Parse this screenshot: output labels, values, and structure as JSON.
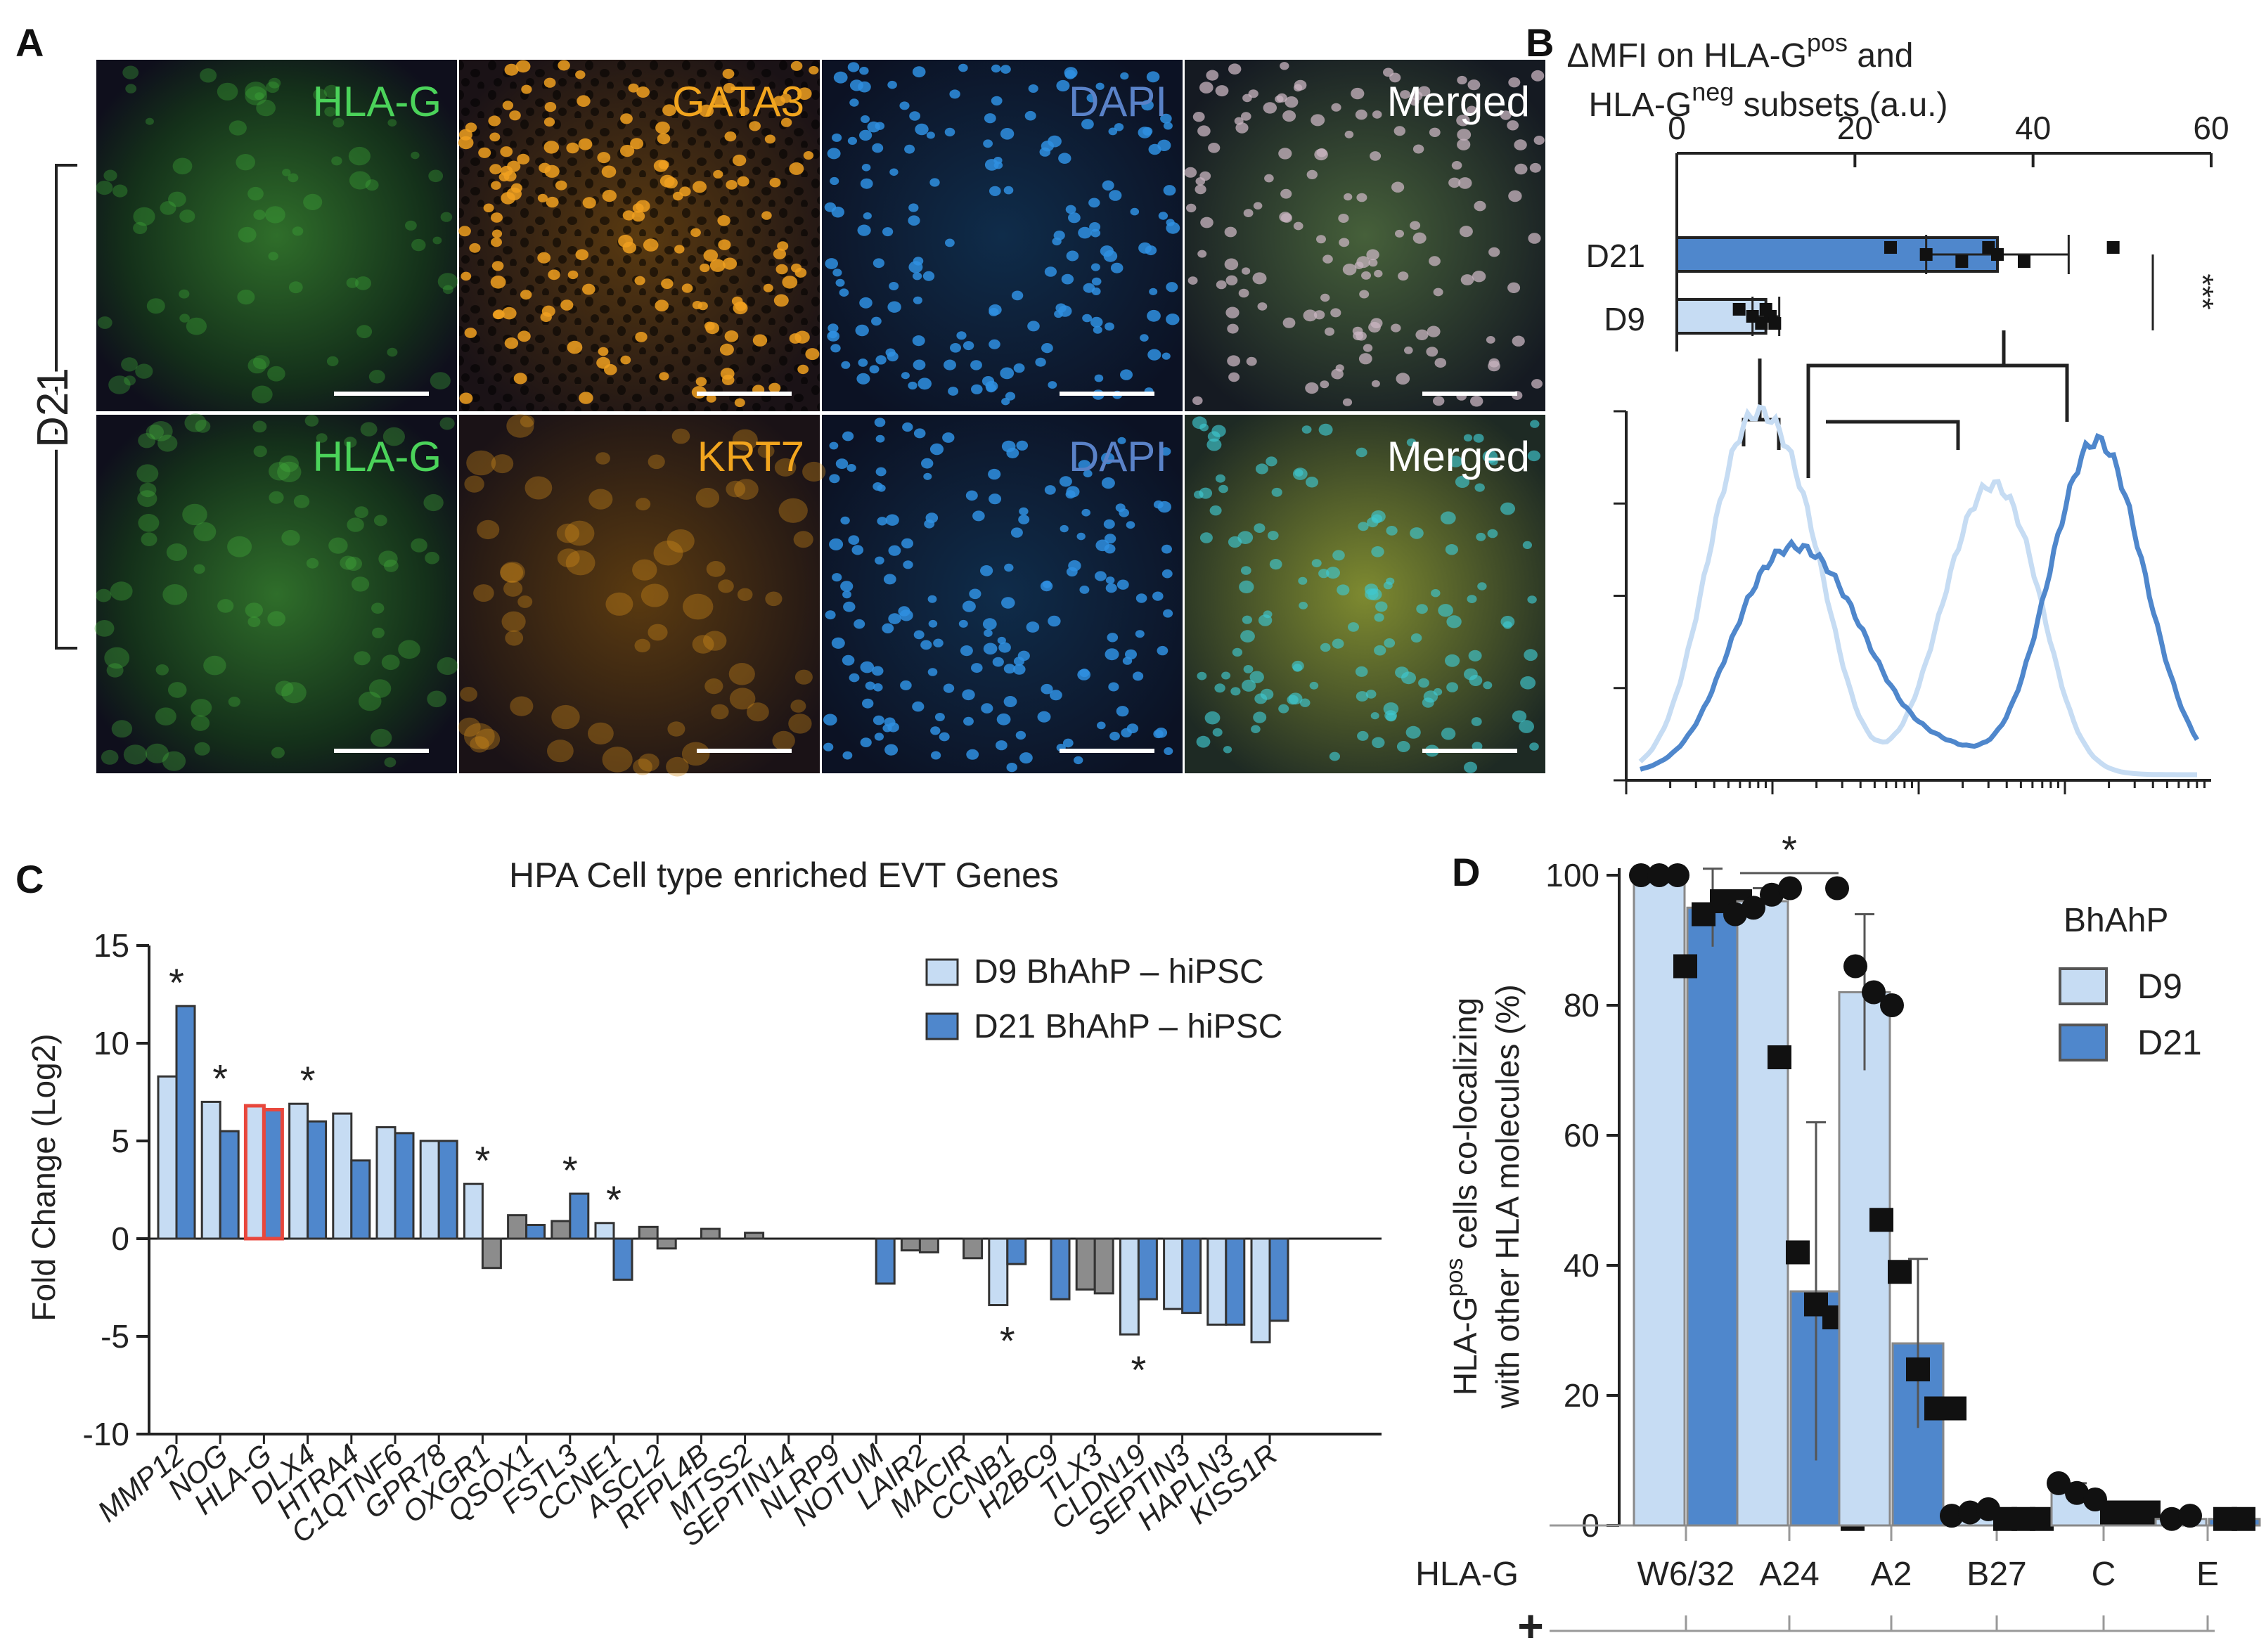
{
  "panel_letters": {
    "A": "A",
    "B": "B",
    "C": "C",
    "D": "D"
  },
  "colors": {
    "d9": "#c6dcf3",
    "d21": "#4f87cc",
    "gray": "#8c8c8c",
    "red_outline": "#e8473c",
    "green_label": "#4bd35a",
    "orange_label": "#f2a51e",
    "blue_label": "#5a82c8",
    "white_label": "#ffffff"
  },
  "panel_a": {
    "row_label": "D21",
    "row1": [
      "HLA-G",
      "GATA3",
      "DAPI",
      "Merged"
    ],
    "row2": [
      "HLA-G",
      "KRT7",
      "DAPI",
      "Merged"
    ]
  },
  "panel_b": {
    "title_line1": "ΔMFI on HLA-G",
    "title_sup1": "pos",
    "title_after1": " and",
    "title_line2": "HLA-G",
    "title_sup2": "neg",
    "title_after2": " subsets (a.u.)",
    "axis_ticks": [
      "0",
      "20",
      "40",
      "60"
    ],
    "rows": [
      "D21",
      "D9"
    ],
    "significance": "***",
    "chart_data": {
      "type": "bar",
      "orientation": "horizontal",
      "categories": [
        "D21",
        "D9"
      ],
      "values": [
        36,
        10
      ],
      "errors": [
        8,
        1.5
      ],
      "points": [
        [
          24,
          28,
          32,
          35,
          36,
          39,
          49
        ],
        [
          7,
          8.5,
          9.5,
          10,
          10.5,
          11
        ]
      ],
      "xlim": [
        0,
        60
      ]
    }
  },
  "panel_c": {
    "title": "HPA Cell type enriched EVT Genes",
    "ylabel": "Fold Change (Log2)",
    "yticks": [
      "15",
      "10",
      "5",
      "0",
      "-5",
      "-10"
    ],
    "legend": [
      "D9 BhAhP – hiPSC",
      "D21 BhAhP – hiPSC"
    ],
    "star": "*",
    "chart_data": {
      "type": "bar",
      "ylim": [
        -10,
        15
      ],
      "categories": [
        "MMP12",
        "NOG",
        "HLA-G",
        "DLX4",
        "HTRA4",
        "C1QTNF6",
        "GPR78",
        "OXGR1",
        "QSOX1",
        "FSTL3",
        "CCNE1",
        "ASCL2",
        "RFPL4B",
        "MTSS2",
        "SEPTIN14",
        "NLRP9",
        "NOTUM",
        "LAIR2",
        "MACIR",
        "CCNB1",
        "H2BC9",
        "TLX3",
        "CLDN19",
        "SEPTIN3",
        "HAPLN3",
        "KISS1R"
      ],
      "series": [
        {
          "name": "D9 BhAhP – hiPSC",
          "values": [
            8.3,
            7.0,
            6.8,
            6.9,
            6.4,
            5.7,
            5.0,
            2.8,
            1.2,
            0.9,
            0.8,
            0.6,
            0.0,
            0.0,
            0.0,
            0.0,
            0.0,
            -0.6,
            0.0,
            -3.4,
            0.0,
            -2.6,
            -4.9,
            -3.6,
            -4.4,
            -5.3
          ]
        },
        {
          "name": "D21 BhAhP – hiPSC",
          "values": [
            11.9,
            5.5,
            6.6,
            6.0,
            4.0,
            5.4,
            5.0,
            -1.5,
            0.7,
            2.3,
            -2.1,
            -0.5,
            0.5,
            0.3,
            0.0,
            0.0,
            -2.3,
            -0.7,
            -1.0,
            -1.3,
            -3.1,
            -2.8,
            -3.1,
            -3.8,
            -4.4,
            -4.2
          ]
        }
      ],
      "gray_bars": [
        [
          7,
          1
        ],
        [
          8,
          0
        ],
        [
          9,
          0
        ],
        [
          11,
          0
        ],
        [
          11,
          1
        ],
        [
          12,
          1
        ],
        [
          13,
          1
        ],
        [
          17,
          0
        ],
        [
          17,
          1
        ],
        [
          18,
          1
        ],
        [
          21,
          0
        ],
        [
          21,
          1
        ]
      ],
      "red_bars": [
        [
          2,
          0
        ],
        [
          2,
          1
        ]
      ],
      "stars_above": [
        0,
        1,
        3,
        7,
        9,
        10
      ],
      "stars_below": [
        19,
        22
      ]
    }
  },
  "panel_d": {
    "ylabel_line1": "HLA-G",
    "ylabel_sup": "pos",
    "ylabel_after1": " cells co-localizing",
    "ylabel_line2": "with other HLA molecules (%)",
    "yticks": [
      "100",
      "80",
      "60",
      "40",
      "20",
      "0"
    ],
    "xlabel_prefix": "HLA-G",
    "xlabel_plus": "+",
    "legend_title": "BhAhP",
    "legend": [
      "D9",
      "D21"
    ],
    "star": "*",
    "chart_data": {
      "type": "bar",
      "ylim": [
        0,
        100
      ],
      "categories": [
        "W6/32",
        "A24",
        "A2",
        "B27",
        "C",
        "E"
      ],
      "series": [
        {
          "name": "D9",
          "values": [
            100,
            96,
            82,
            2,
            5,
            1
          ],
          "errors": [
            0,
            2,
            12,
            0.5,
            1.5,
            0.5
          ]
        },
        {
          "name": "D21",
          "values": [
            95,
            36,
            28,
            1,
            2,
            1
          ],
          "errors": [
            6,
            26,
            13,
            0.5,
            0.5,
            0.5
          ]
        }
      ],
      "points_d9": [
        [
          100,
          100,
          100
        ],
        [
          94,
          95,
          97,
          98
        ],
        [
          98,
          86,
          82,
          80
        ],
        [
          1.5,
          2,
          2.5
        ],
        [
          6.5,
          5,
          4
        ],
        [
          1,
          1.5
        ]
      ],
      "points_d21": [
        [
          86,
          94,
          96,
          96
        ],
        [
          72,
          42,
          34,
          32,
          1
        ],
        [
          47,
          39,
          24,
          18,
          18
        ],
        [
          1,
          1,
          1
        ],
        [
          2,
          2,
          2
        ],
        [
          1,
          1
        ]
      ],
      "significance_pair": [
        "A24"
      ]
    }
  }
}
